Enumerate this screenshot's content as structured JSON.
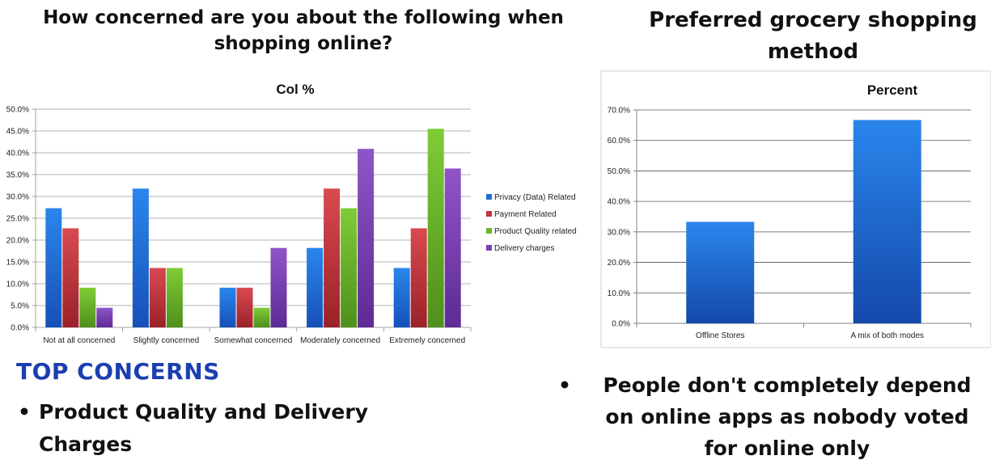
{
  "left_heading": "How concerned are you about the following when shopping online?",
  "right_heading": "Preferred grocery shopping method",
  "top_concerns_label": "TOP CONCERNS",
  "left_bullet": "Product Quality and Delivery Charges",
  "right_bullet": "People don't completely depend on online apps as nobody voted for online only",
  "bullet_glyph": "•",
  "chart_data": [
    {
      "type": "bar",
      "title": "Col %",
      "categories": [
        "Not at all concerned",
        "Slightly concerned",
        "Somewhat concerned",
        "Moderately concerned",
        "Extremely concerned"
      ],
      "y_ticks": [
        "0.0%",
        "5.0%",
        "10.0%",
        "15.0%",
        "20.0%",
        "25.0%",
        "30.0%",
        "35.0%",
        "40.0%",
        "45.0%",
        "50.0%"
      ],
      "ylim": [
        0,
        50
      ],
      "grid": true,
      "legend_position": "right",
      "series": [
        {
          "name": "Privacy (Data) Related",
          "color": "#1f6fd6",
          "values": [
            27.3,
            31.8,
            9.1,
            18.2,
            13.6
          ]
        },
        {
          "name": "Payment Related",
          "color": "#c0343b",
          "values": [
            22.7,
            13.6,
            9.1,
            31.8,
            22.7
          ]
        },
        {
          "name": "Product Quality related",
          "color": "#6ab42a",
          "values": [
            9.1,
            13.6,
            4.5,
            27.3,
            45.5
          ]
        },
        {
          "name": "Delivery charges",
          "color": "#7b3fb3",
          "values": [
            4.5,
            0,
            18.2,
            40.9,
            36.4
          ]
        }
      ]
    },
    {
      "type": "bar",
      "title": "Percent",
      "categories": [
        "Offline Stores",
        "A mix of both modes"
      ],
      "y_ticks": [
        "0.0%",
        "10.0%",
        "20.0%",
        "30.0%",
        "40.0%",
        "50.0%",
        "60.0%",
        "70.0%"
      ],
      "ylim": [
        0,
        70
      ],
      "grid": true,
      "color": "#1a63cf",
      "values": [
        33.3,
        66.7
      ]
    }
  ]
}
